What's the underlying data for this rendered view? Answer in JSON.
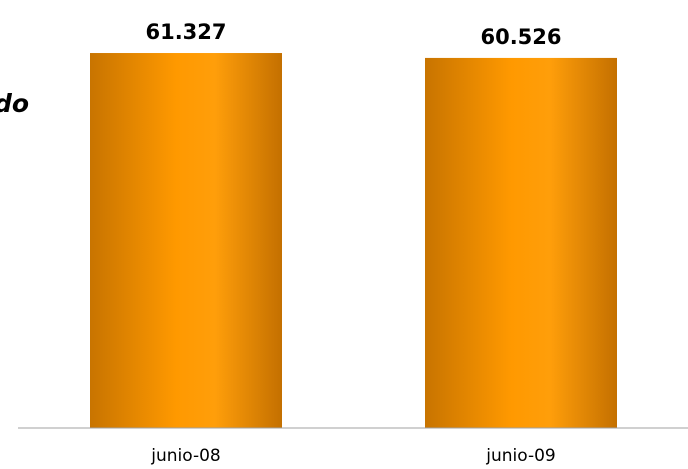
{
  "clipped_text": "do",
  "chart_data": {
    "type": "bar",
    "categories": [
      "junio-08",
      "junio-09"
    ],
    "values": [
      61327,
      60526
    ],
    "data_labels": [
      "61.327",
      "60.526"
    ],
    "ylim": [
      0,
      70000
    ],
    "grid": false,
    "bar_color": "#FF9900",
    "bar_edge_color": "#C87400",
    "axis_color": "#A0A0A0"
  }
}
